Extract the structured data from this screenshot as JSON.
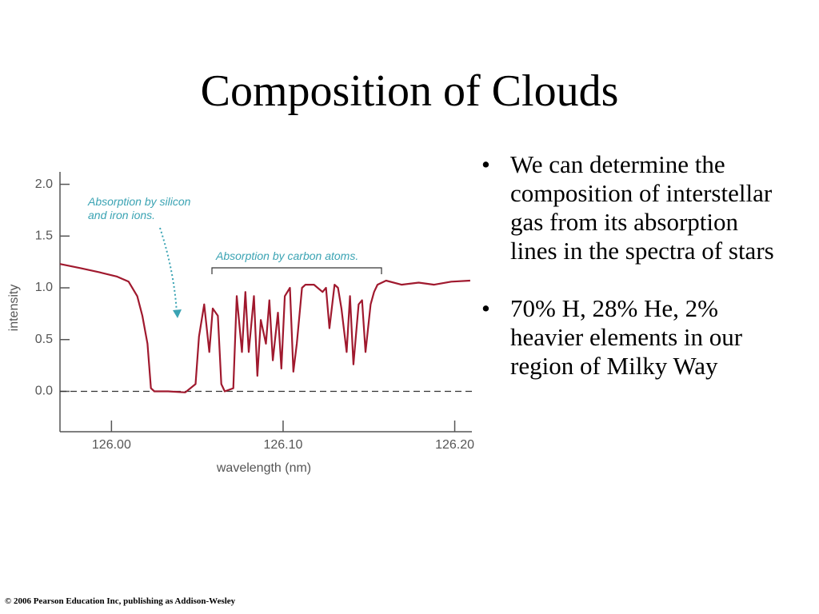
{
  "title": "Composition of Clouds",
  "bullets": [
    "We can determine the composition of interstellar gas from its absorption lines in the spectra of stars",
    "70% H, 28% He, 2% heavier elements in our region of Milky Way"
  ],
  "footer": "© 2006 Pearson Education Inc, publishing as Addison-Wesley",
  "chart_data": {
    "type": "line",
    "x_label": "wavelength (nm)",
    "y_label": "intensity",
    "annotations": [
      "Absorption by silicon and iron ions.",
      "Absorption by carbon atoms."
    ],
    "x": [
      125.97,
      125.982,
      125.993,
      126.003,
      126.01,
      126.015,
      126.018,
      126.021,
      126.023,
      126.025,
      126.033,
      126.043,
      126.049,
      126.051,
      126.054,
      126.057,
      126.059,
      126.062,
      126.064,
      126.066,
      126.071,
      126.073,
      126.076,
      126.078,
      126.08,
      126.083,
      126.085,
      126.087,
      126.09,
      126.092,
      126.094,
      126.097,
      126.099,
      126.101,
      126.104,
      126.106,
      126.108,
      126.111,
      126.113,
      126.118,
      126.123,
      126.125,
      126.127,
      126.13,
      126.132,
      126.134,
      126.137,
      126.139,
      126.141,
      126.144,
      126.146,
      126.148,
      126.151,
      126.153,
      126.155,
      126.16,
      126.169,
      126.179,
      126.188,
      126.198,
      126.209
    ],
    "series": [
      {
        "color": "#a0192e",
        "values": [
          1.23,
          1.19,
          1.15,
          1.11,
          1.06,
          0.92,
          0.73,
          0.46,
          0.03,
          0.0,
          0.0,
          -0.01,
          0.07,
          0.53,
          0.84,
          0.38,
          0.8,
          0.73,
          0.07,
          0.0,
          0.03,
          0.92,
          0.38,
          0.96,
          0.38,
          0.92,
          0.15,
          0.69,
          0.46,
          0.88,
          0.3,
          0.76,
          0.22,
          0.92,
          1.0,
          0.19,
          0.46,
          1.0,
          1.03,
          1.03,
          0.96,
          1.0,
          0.61,
          1.03,
          1.0,
          0.8,
          0.38,
          0.92,
          0.26,
          0.84,
          0.88,
          0.38,
          0.84,
          0.96,
          1.03,
          1.07,
          1.03,
          1.05,
          1.03,
          1.06,
          1.07
        ]
      }
    ],
    "xlim": [
      125.97,
      126.21
    ],
    "xticks": [
      {
        "value": 126.0,
        "label": "126.00"
      },
      {
        "value": 126.1,
        "label": "126.10"
      },
      {
        "value": 126.2,
        "label": "126.20"
      }
    ],
    "ylim": [
      -0.39,
      2.12
    ],
    "yticks": [
      {
        "value": 2.0,
        "label": "2.0"
      },
      {
        "value": 1.5,
        "label": "1.5"
      },
      {
        "value": 1.0,
        "label": "1.0"
      },
      {
        "value": 0.5,
        "label": "0.5"
      },
      {
        "value": 0.0,
        "label": "0.0"
      }
    ],
    "zero_line": true
  }
}
